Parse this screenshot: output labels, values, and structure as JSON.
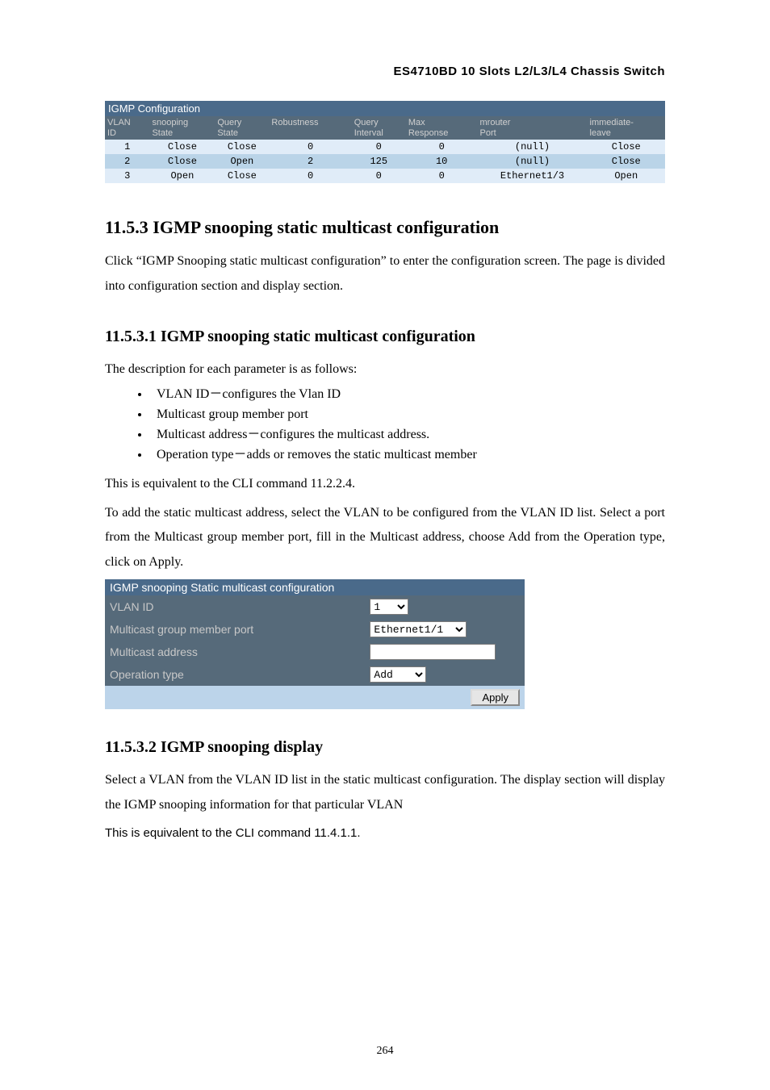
{
  "header_title": "ES4710BD 10 Slots L2/L3/L4 Chassis Switch",
  "igmp_table": {
    "caption": "IGMP Configuration",
    "columns": [
      "VLAN ID",
      "snooping State",
      "Query State",
      "Robustness",
      "Query Interval",
      "Max Response",
      "mrouter Port",
      "immediate-leave"
    ],
    "rows": [
      [
        "1",
        "Close",
        "Close",
        "0",
        "0",
        "0",
        "(null)",
        "Close"
      ],
      [
        "2",
        "Close",
        "Open",
        "2",
        "125",
        "10",
        "(null)",
        "Close"
      ],
      [
        "3",
        "Open",
        "Close",
        "0",
        "0",
        "0",
        "Ethernet1/3",
        "Open"
      ]
    ]
  },
  "sec_11_5_3": {
    "heading": "11.5.3    IGMP snooping static multicast configuration",
    "para": "Click “IGMP Snooping static multicast configuration” to enter the configuration screen. The page is divided into configuration section and display section."
  },
  "sec_11_5_3_1": {
    "heading": "11.5.3.1    IGMP snooping static multicast configuration",
    "intro": "The description for each parameter is as follows:",
    "bullets": [
      "VLAN ID－configures the Vlan ID",
      "Multicast group member port",
      "Multicast address－configures the multicast address.",
      "Operation type－adds or removes the static multicast member"
    ],
    "after1": "This is equivalent to the CLI command 11.2.2.4.",
    "after2": "To add the static multicast address, select the VLAN to be configured from the VLAN ID list. Select a port from the Multicast group member port, fill in the Multicast address, choose Add from the Operation type, click on Apply."
  },
  "form": {
    "title": "IGMP snooping Static multicast configuration",
    "rows": {
      "vlan": {
        "label": "VLAN ID",
        "value": "1"
      },
      "port": {
        "label": "Multicast group member port",
        "value": "Ethernet1/1"
      },
      "addr": {
        "label": "Multicast address",
        "value": ""
      },
      "optype": {
        "label": "Operation type",
        "value": "Add"
      }
    },
    "apply_label": "Apply"
  },
  "sec_11_5_3_2": {
    "heading": "11.5.3.2    IGMP snooping display",
    "para1": "Select a VLAN from the VLAN ID list in the static multicast configuration. The display section will display the IGMP snooping information for that particular VLAN",
    "para2": "This is equivalent to the CLI command 11.4.1.1."
  },
  "page_number": "264"
}
